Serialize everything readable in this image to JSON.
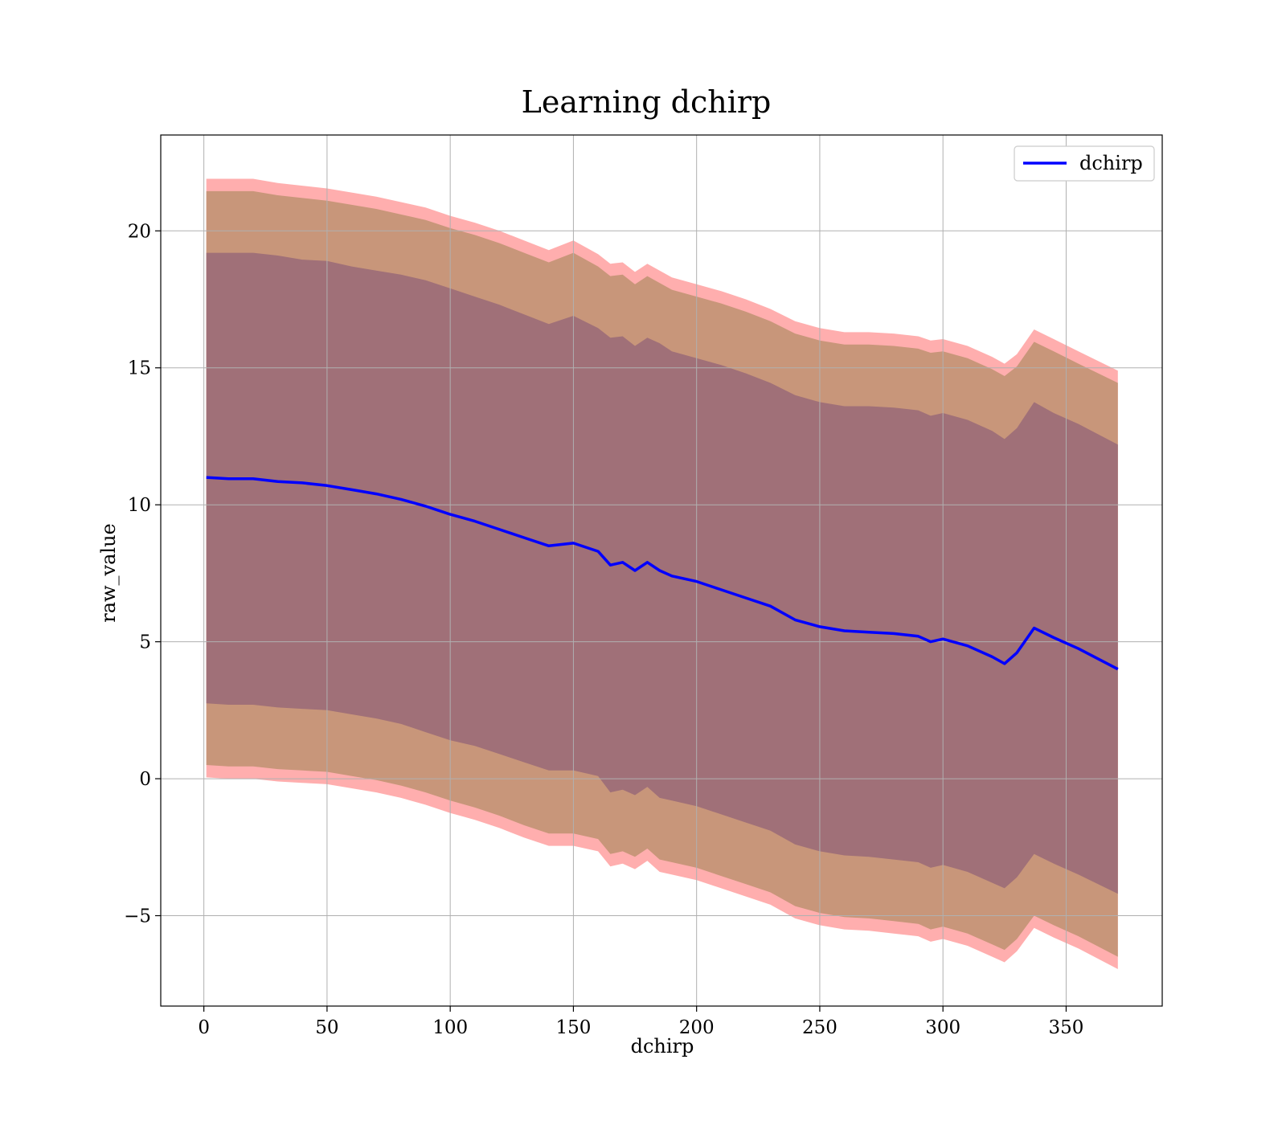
{
  "chart_data": {
    "type": "area",
    "title": "Learning dchirp",
    "xlabel": "dchirp",
    "ylabel": "raw_value",
    "xlim": [
      -17.5,
      389
    ],
    "ylim": [
      -8.3,
      23.5
    ],
    "xticks": [
      0,
      50,
      100,
      150,
      200,
      250,
      300,
      350
    ],
    "xtick_labels": [
      "0",
      "50",
      "100",
      "150",
      "200",
      "250",
      "300",
      "350"
    ],
    "yticks": [
      -5,
      0,
      5,
      10,
      15,
      20
    ],
    "ytick_labels": [
      "−5",
      "0",
      "5",
      "10",
      "15",
      "20"
    ],
    "grid": true,
    "legend": {
      "position": "top-right",
      "entries": [
        "dchirp"
      ]
    },
    "colors": {
      "line": "#0000ff",
      "outer_band": "#ff9a9a",
      "middle_band": "#c8967a",
      "inner_band": "#a07078",
      "grid": "#b0b0b0"
    },
    "series": [
      {
        "name": "dchirp",
        "x": [
          1,
          10,
          20,
          30,
          40,
          50,
          60,
          70,
          80,
          90,
          100,
          110,
          120,
          130,
          140,
          150,
          160,
          165,
          170,
          175,
          180,
          185,
          190,
          200,
          210,
          220,
          230,
          240,
          250,
          260,
          270,
          280,
          290,
          295,
          300,
          310,
          320,
          325,
          330,
          337,
          345,
          355,
          371
        ],
        "mean": [
          11.0,
          10.95,
          10.95,
          10.85,
          10.8,
          10.7,
          10.55,
          10.4,
          10.2,
          9.95,
          9.65,
          9.4,
          9.1,
          8.8,
          8.5,
          8.6,
          8.3,
          7.8,
          7.9,
          7.6,
          7.9,
          7.6,
          7.4,
          7.2,
          6.9,
          6.6,
          6.3,
          5.8,
          5.55,
          5.4,
          5.35,
          5.3,
          5.2,
          5.0,
          5.1,
          4.85,
          4.45,
          4.2,
          4.6,
          5.5,
          5.15,
          4.75,
          4.0
        ],
        "inner_upper": [
          19.2,
          19.2,
          19.2,
          19.1,
          18.95,
          18.9,
          18.7,
          18.55,
          18.4,
          18.2,
          17.9,
          17.6,
          17.3,
          16.95,
          16.6,
          16.9,
          16.45,
          16.1,
          16.15,
          15.8,
          16.1,
          15.9,
          15.6,
          15.35,
          15.1,
          14.8,
          14.45,
          14.0,
          13.75,
          13.6,
          13.6,
          13.55,
          13.45,
          13.25,
          13.35,
          13.1,
          12.7,
          12.4,
          12.8,
          13.75,
          13.35,
          12.95,
          12.2
        ],
        "inner_lower": [
          2.75,
          2.7,
          2.7,
          2.6,
          2.55,
          2.5,
          2.35,
          2.2,
          2.0,
          1.7,
          1.4,
          1.2,
          0.9,
          0.6,
          0.3,
          0.3,
          0.1,
          -0.5,
          -0.4,
          -0.6,
          -0.3,
          -0.7,
          -0.8,
          -1.0,
          -1.3,
          -1.6,
          -1.9,
          -2.4,
          -2.65,
          -2.8,
          -2.85,
          -2.95,
          -3.05,
          -3.25,
          -3.15,
          -3.4,
          -3.8,
          -4.0,
          -3.6,
          -2.75,
          -3.1,
          -3.5,
          -4.2
        ],
        "middle_upper": [
          21.45,
          21.45,
          21.45,
          21.3,
          21.2,
          21.1,
          20.95,
          20.8,
          20.6,
          20.4,
          20.1,
          19.85,
          19.55,
          19.2,
          18.85,
          19.2,
          18.7,
          18.35,
          18.4,
          18.05,
          18.35,
          18.1,
          17.85,
          17.6,
          17.35,
          17.05,
          16.7,
          16.25,
          16.0,
          15.85,
          15.85,
          15.8,
          15.7,
          15.55,
          15.6,
          15.35,
          14.95,
          14.7,
          15.05,
          15.95,
          15.6,
          15.15,
          14.45
        ],
        "middle_lower": [
          0.5,
          0.45,
          0.45,
          0.35,
          0.3,
          0.25,
          0.1,
          -0.05,
          -0.25,
          -0.5,
          -0.8,
          -1.05,
          -1.35,
          -1.7,
          -2.0,
          -2.0,
          -2.2,
          -2.75,
          -2.65,
          -2.85,
          -2.55,
          -2.95,
          -3.05,
          -3.25,
          -3.55,
          -3.85,
          -4.15,
          -4.65,
          -4.9,
          -5.05,
          -5.1,
          -5.2,
          -5.3,
          -5.5,
          -5.4,
          -5.65,
          -6.05,
          -6.25,
          -5.85,
          -5.0,
          -5.35,
          -5.75,
          -6.5
        ],
        "outer_upper": [
          21.9,
          21.9,
          21.9,
          21.75,
          21.65,
          21.55,
          21.4,
          21.25,
          21.05,
          20.85,
          20.55,
          20.3,
          20.0,
          19.65,
          19.3,
          19.65,
          19.15,
          18.8,
          18.85,
          18.5,
          18.8,
          18.55,
          18.3,
          18.05,
          17.8,
          17.5,
          17.15,
          16.7,
          16.45,
          16.3,
          16.3,
          16.25,
          16.15,
          16.0,
          16.05,
          15.8,
          15.4,
          15.15,
          15.5,
          16.4,
          16.05,
          15.6,
          14.9
        ],
        "outer_lower": [
          0.05,
          0.0,
          0.0,
          -0.1,
          -0.15,
          -0.2,
          -0.35,
          -0.5,
          -0.7,
          -0.95,
          -1.25,
          -1.5,
          -1.8,
          -2.15,
          -2.45,
          -2.45,
          -2.65,
          -3.2,
          -3.1,
          -3.3,
          -3.0,
          -3.4,
          -3.5,
          -3.7,
          -4.0,
          -4.3,
          -4.6,
          -5.1,
          -5.35,
          -5.5,
          -5.55,
          -5.65,
          -5.75,
          -5.95,
          -5.85,
          -6.1,
          -6.5,
          -6.7,
          -6.3,
          -5.45,
          -5.8,
          -6.2,
          -6.95
        ]
      }
    ]
  }
}
